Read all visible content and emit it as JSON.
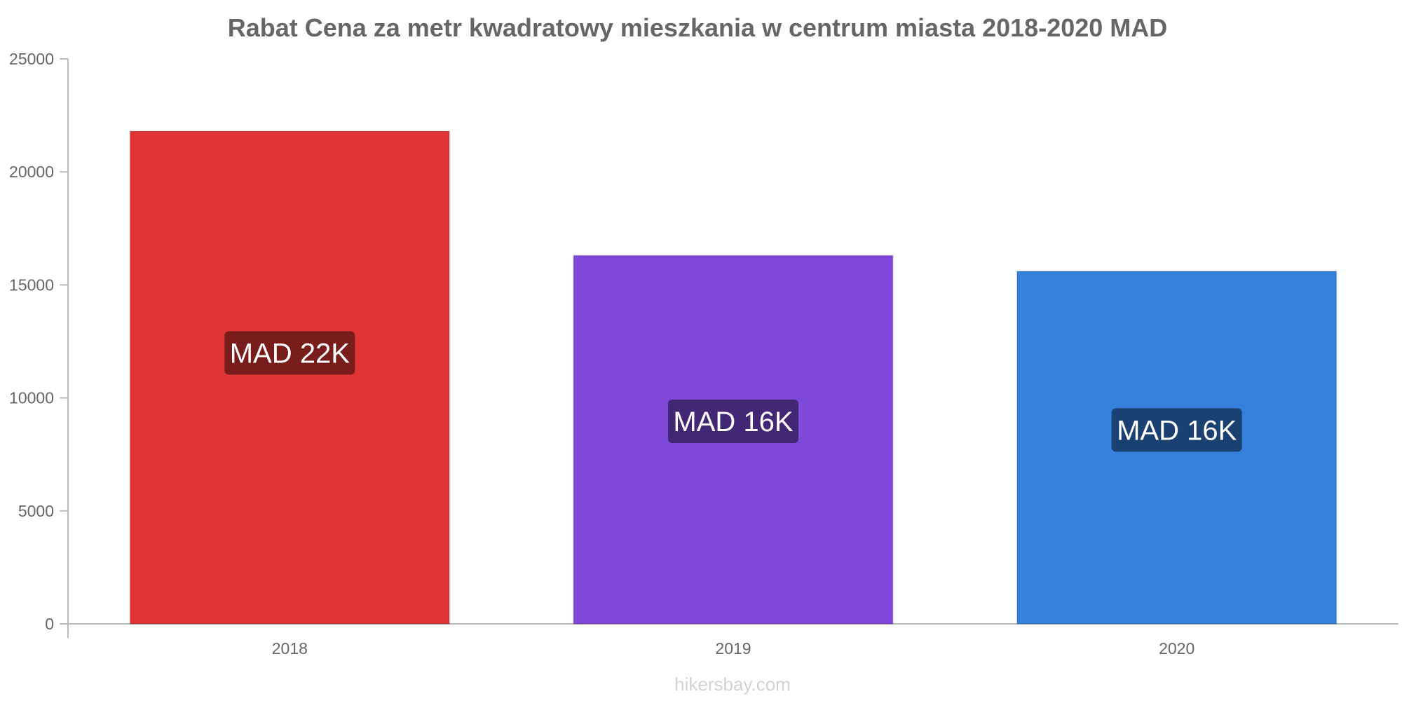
{
  "chart_data": {
    "type": "bar",
    "title": "Rabat Cena za metr kwadratowy mieszkania w centrum miasta 2018-2020 MAD",
    "categories": [
      "2018",
      "2019",
      "2020"
    ],
    "values": [
      21800,
      16300,
      15600
    ],
    "data_labels": [
      "MAD 22K",
      "MAD 16K",
      "MAD 16K"
    ],
    "bar_colors": [
      "#e13535",
      "#8049d9",
      "#3381dd"
    ],
    "label_bg_colors": [
      "#781c1c",
      "#422775",
      "#1a4171"
    ],
    "ylim": [
      0,
      25000
    ],
    "yticks": [
      0,
      5000,
      10000,
      15000,
      20000,
      25000
    ],
    "xlabel": "",
    "ylabel": "",
    "grid": false,
    "legend": "none"
  },
  "watermark": "hikersbay.com",
  "colors": {
    "title": "#666666",
    "axis": "#bbbbbb",
    "tick_text": "#666666",
    "watermark": "#d2d2d2"
  }
}
